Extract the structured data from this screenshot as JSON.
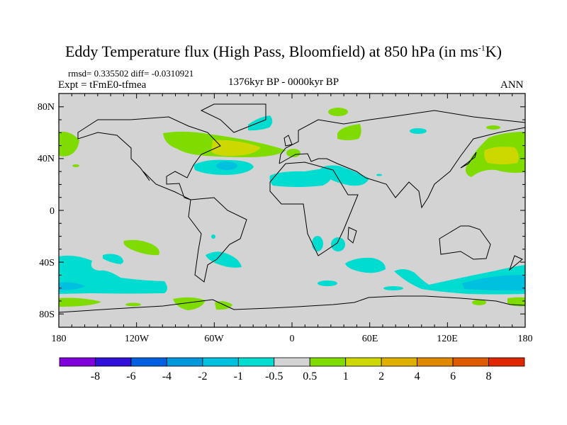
{
  "title": {
    "main": "Eddy Temperature flux (High Pass, Bloomfield) at 850 hPa (in ms",
    "sup": "-1",
    "end": "K)"
  },
  "stats": "rmsd= 0.335502 diff= -0.0310921",
  "experiment": "Expt = tFmE0-tfmea",
  "period": "1376kyr BP - 0000kyr BP",
  "season": "ANN",
  "chart_data": {
    "type": "heatmap",
    "projection": "cylindrical-equidistant",
    "lon_range": [
      -180,
      180
    ],
    "lat_range": [
      -90,
      90
    ],
    "x_tick_labels": [
      "180",
      "120W",
      "60W",
      "0",
      "60E",
      "120E",
      "180"
    ],
    "y_tick_labels": [
      "80N",
      "40N",
      "0",
      "40S",
      "80S"
    ],
    "colorbar": {
      "levels": [
        "-8",
        "-6",
        "-4",
        "-2",
        "-1",
        "-0.5",
        "0.5",
        "1",
        "2",
        "4",
        "6",
        "8"
      ],
      "colors": [
        "#8000dc",
        "#3010d8",
        "#0060e0",
        "#0098dc",
        "#00c0e0",
        "#00dcd0",
        "#d3d3d3",
        "#80dc00",
        "#cdd800",
        "#e0b000",
        "#e08800",
        "#e05a00",
        "#e02800"
      ]
    },
    "anomalies": [
      {
        "region": "North Atlantic storm track",
        "range": "0.5 to 2"
      },
      {
        "region": "NW Pacific storm track",
        "range": "0.5 to 2"
      },
      {
        "region": "Subtropical Atlantic",
        "range": "-2 to -0.5"
      },
      {
        "region": "Sahara / Arabia",
        "range": "-2 to -0.5"
      },
      {
        "region": "Southern Ocean Pacific sector",
        "range": "-2 to -0.5"
      },
      {
        "region": "Southern Ocean Indian/Australian sector",
        "range": "-2 to -0.5"
      },
      {
        "region": "Antarctic coast",
        "range": "0.5 to 1"
      }
    ]
  }
}
